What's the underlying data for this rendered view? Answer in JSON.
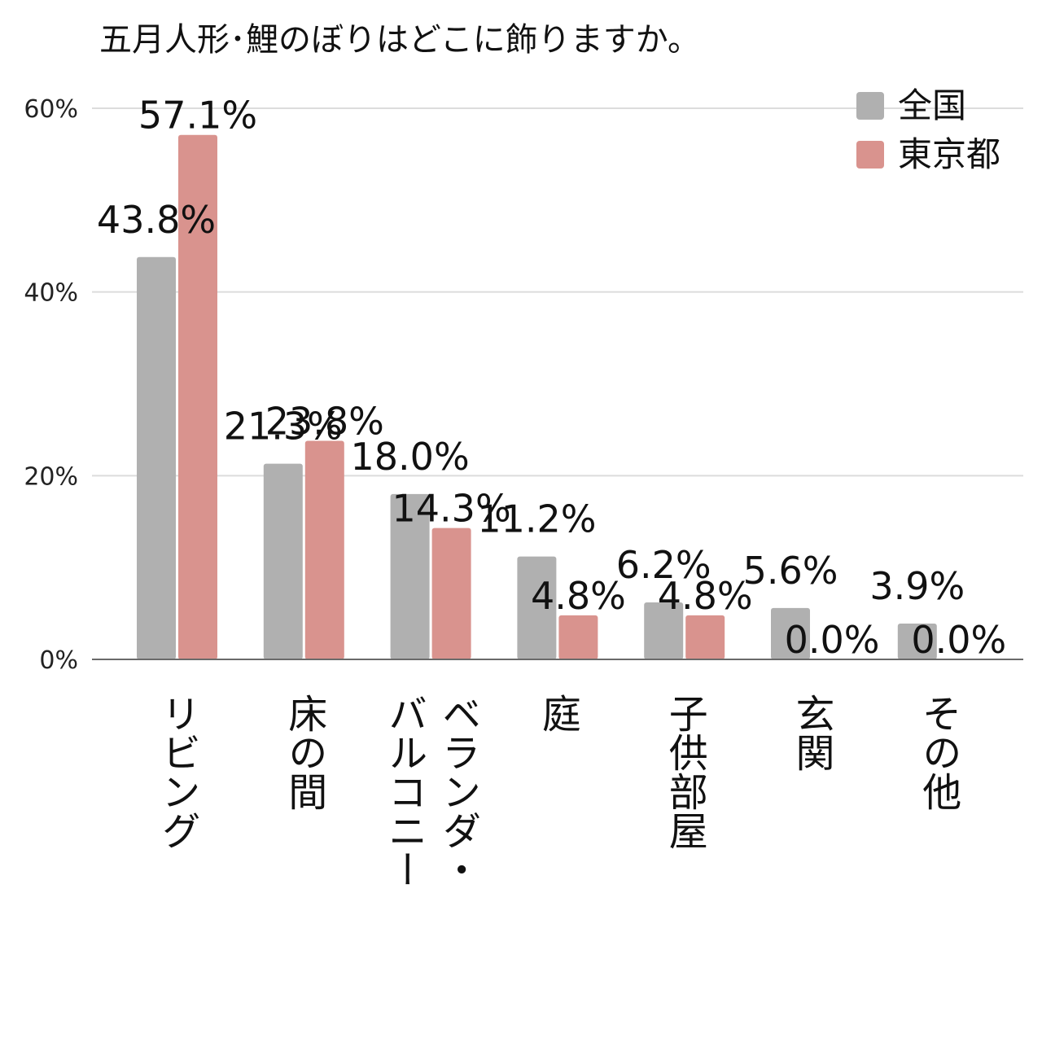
{
  "chart_data": {
    "type": "bar",
    "title": "五月人形･鯉のぼりはどこに飾りますか。",
    "xlabel": "",
    "ylabel": "",
    "ylim": [
      0,
      60
    ],
    "yticks": [
      0,
      20,
      40,
      60
    ],
    "ytick_labels": [
      "0%",
      "20%",
      "40%",
      "60%"
    ],
    "grid": true,
    "legend_position": "top-right",
    "categories": [
      "リビング",
      "床の間",
      "ベランダ・バルコニー",
      "庭",
      "子供部屋",
      "玄関",
      "その他"
    ],
    "category_lines": [
      [
        "リビング"
      ],
      [
        "床の間"
      ],
      [
        "バルコニー",
        "ベランダ・"
      ],
      [
        "庭"
      ],
      [
        "子供部屋"
      ],
      [
        "玄関"
      ],
      [
        "その他"
      ]
    ],
    "series": [
      {
        "name": "全国",
        "color": "#b0b0b0",
        "values": [
          43.8,
          21.3,
          18.0,
          11.2,
          6.2,
          5.6,
          3.9
        ],
        "labels": [
          "43.8%",
          "21.3%",
          "18.0%",
          "11.2%",
          "6.2%",
          "5.6%",
          "3.9%"
        ]
      },
      {
        "name": "東京都",
        "color": "#d9938e",
        "values": [
          57.1,
          23.8,
          14.3,
          4.8,
          4.8,
          0.0,
          0.0
        ],
        "labels": [
          "57.1%",
          "23.8%",
          "14.3%",
          "4.8%",
          "4.8%",
          "0.0%",
          "0.0%"
        ]
      }
    ]
  }
}
